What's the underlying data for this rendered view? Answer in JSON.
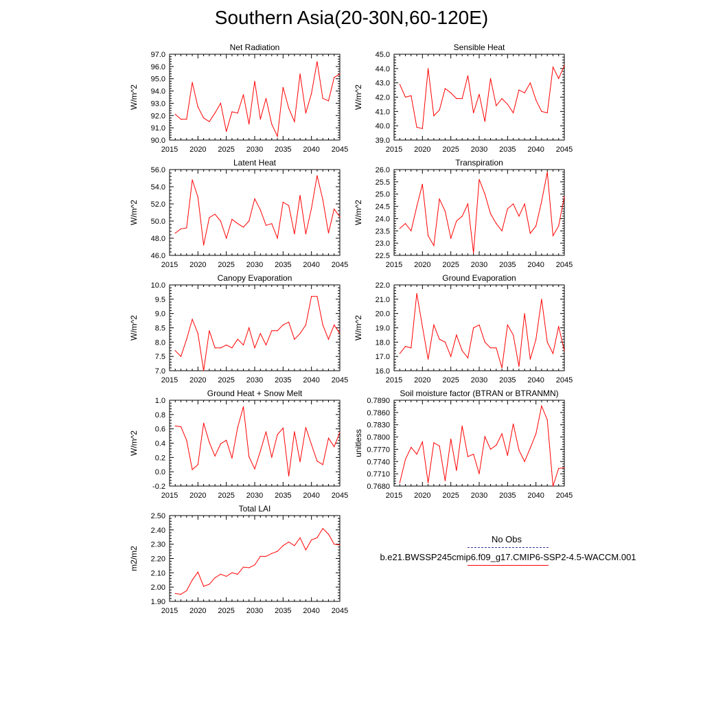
{
  "title": "Southern Asia(20-30N,60-120E)",
  "colors": {
    "series": "#ff0000",
    "obs": "#3030a0",
    "axis": "#000000"
  },
  "legend": {
    "obs_label": "No Obs",
    "model_label": "b.e21.BWSSP245cmip6.f09_g17.CMIP6-SSP2-4.5-WACCM.001"
  },
  "chart_data": [
    {
      "type": "line",
      "title": "Net Radiation",
      "ylabel": "W/m^2",
      "xlabel": "",
      "xlim": [
        2015,
        2045
      ],
      "ylim": [
        90.0,
        97.0
      ],
      "xticks": [
        2015,
        2020,
        2025,
        2030,
        2035,
        2040,
        2045
      ],
      "yticks": [
        "90.0",
        "91.0",
        "92.0",
        "93.0",
        "94.0",
        "95.0",
        "96.0",
        "97.0"
      ],
      "x": [
        2016,
        2017,
        2018,
        2019,
        2020,
        2021,
        2022,
        2023,
        2024,
        2025,
        2026,
        2027,
        2028,
        2029,
        2030,
        2031,
        2032,
        2033,
        2034,
        2035,
        2036,
        2037,
        2038,
        2039,
        2040,
        2041,
        2042,
        2043,
        2044,
        2045
      ],
      "values": [
        92.1,
        91.7,
        91.7,
        94.7,
        92.7,
        91.8,
        91.5,
        92.2,
        93.0,
        90.7,
        92.3,
        92.2,
        93.7,
        91.3,
        94.8,
        91.7,
        93.4,
        91.3,
        90.3,
        94.3,
        92.6,
        91.5,
        95.4,
        92.2,
        93.8,
        96.4,
        93.4,
        93.2,
        95.1,
        95.4
      ]
    },
    {
      "type": "line",
      "title": "Sensible Heat",
      "ylabel": "W/m^2",
      "xlabel": "",
      "xlim": [
        2015,
        2045
      ],
      "ylim": [
        39.0,
        45.0
      ],
      "xticks": [
        2015,
        2020,
        2025,
        2030,
        2035,
        2040,
        2045
      ],
      "yticks": [
        "39.0",
        "40.0",
        "41.0",
        "42.0",
        "43.0",
        "44.0",
        "45.0"
      ],
      "x": [
        2016,
        2017,
        2018,
        2019,
        2020,
        2021,
        2022,
        2023,
        2024,
        2025,
        2026,
        2027,
        2028,
        2029,
        2030,
        2031,
        2032,
        2033,
        2034,
        2035,
        2036,
        2037,
        2038,
        2039,
        2040,
        2041,
        2042,
        2043,
        2044,
        2045
      ],
      "values": [
        42.9,
        42.0,
        42.1,
        39.9,
        39.8,
        44.0,
        40.7,
        41.1,
        42.6,
        42.3,
        41.9,
        41.9,
        43.5,
        40.9,
        42.2,
        40.3,
        43.3,
        41.4,
        41.9,
        41.5,
        40.9,
        42.5,
        42.3,
        43.0,
        41.8,
        41.0,
        40.9,
        44.1,
        43.3,
        44.2
      ]
    },
    {
      "type": "line",
      "title": "Latent Heat",
      "ylabel": "W/m^2",
      "xlabel": "",
      "xlim": [
        2015,
        2045
      ],
      "ylim": [
        46.0,
        56.0
      ],
      "xticks": [
        2015,
        2020,
        2025,
        2030,
        2035,
        2040,
        2045
      ],
      "yticks": [
        "46.0",
        "48.0",
        "50.0",
        "52.0",
        "54.0",
        "56.0"
      ],
      "x": [
        2016,
        2017,
        2018,
        2019,
        2020,
        2021,
        2022,
        2023,
        2024,
        2025,
        2026,
        2027,
        2028,
        2029,
        2030,
        2031,
        2032,
        2033,
        2034,
        2035,
        2036,
        2037,
        2038,
        2039,
        2040,
        2041,
        2042,
        2043,
        2044,
        2045
      ],
      "values": [
        48.6,
        49.1,
        49.2,
        54.8,
        52.8,
        47.2,
        50.4,
        50.8,
        50.0,
        48.0,
        50.2,
        49.7,
        49.3,
        50.0,
        52.6,
        51.3,
        49.5,
        49.7,
        48.0,
        52.2,
        51.8,
        48.5,
        53.0,
        48.5,
        51.5,
        55.3,
        52.5,
        48.6,
        51.4,
        50.5
      ]
    },
    {
      "type": "line",
      "title": "Transpiration",
      "ylabel": "W/m^2",
      "xlabel": "",
      "xlim": [
        2015,
        2045
      ],
      "ylim": [
        22.5,
        26.0
      ],
      "xticks": [
        2015,
        2020,
        2025,
        2030,
        2035,
        2040,
        2045
      ],
      "yticks": [
        "22.5",
        "23.0",
        "23.5",
        "24.0",
        "24.5",
        "25.0",
        "25.5",
        "26.0"
      ],
      "x": [
        2016,
        2017,
        2018,
        2019,
        2020,
        2021,
        2022,
        2023,
        2024,
        2025,
        2026,
        2027,
        2028,
        2029,
        2030,
        2031,
        2032,
        2033,
        2034,
        2035,
        2036,
        2037,
        2038,
        2039,
        2040,
        2041,
        2042,
        2043,
        2044,
        2045
      ],
      "values": [
        23.6,
        23.8,
        23.5,
        24.5,
        25.4,
        23.3,
        22.9,
        24.8,
        24.3,
        23.2,
        23.9,
        24.1,
        24.6,
        22.6,
        25.6,
        25.0,
        24.2,
        23.8,
        23.5,
        24.4,
        24.6,
        24.1,
        24.6,
        23.4,
        23.7,
        24.7,
        25.9,
        23.3,
        23.7,
        24.9
      ]
    },
    {
      "type": "line",
      "title": "Canopy Evaporation",
      "ylabel": "W/m^2",
      "xlabel": "",
      "xlim": [
        2015,
        2045
      ],
      "ylim": [
        7.0,
        10.0
      ],
      "xticks": [
        2015,
        2020,
        2025,
        2030,
        2035,
        2040,
        2045
      ],
      "yticks": [
        "7.0",
        "7.5",
        "8.0",
        "8.5",
        "9.0",
        "9.5",
        "10.0"
      ],
      "x": [
        2016,
        2017,
        2018,
        2019,
        2020,
        2021,
        2022,
        2023,
        2024,
        2025,
        2026,
        2027,
        2028,
        2029,
        2030,
        2031,
        2032,
        2033,
        2034,
        2035,
        2036,
        2037,
        2038,
        2039,
        2040,
        2041,
        2042,
        2043,
        2044,
        2045
      ],
      "values": [
        7.7,
        7.5,
        8.1,
        8.8,
        8.3,
        7.0,
        8.4,
        7.8,
        7.8,
        7.9,
        7.8,
        8.1,
        7.9,
        8.5,
        7.8,
        8.3,
        7.9,
        8.4,
        8.4,
        8.6,
        8.7,
        8.1,
        8.3,
        8.6,
        9.6,
        9.6,
        8.6,
        8.1,
        8.6,
        8.3
      ]
    },
    {
      "type": "line",
      "title": "Ground Evaporation",
      "ylabel": "W/m^2",
      "xlabel": "",
      "xlim": [
        2015,
        2045
      ],
      "ylim": [
        16.0,
        22.0
      ],
      "xticks": [
        2015,
        2020,
        2025,
        2030,
        2035,
        2040,
        2045
      ],
      "yticks": [
        "16.0",
        "17.0",
        "18.0",
        "19.0",
        "20.0",
        "21.0",
        "22.0"
      ],
      "x": [
        2016,
        2017,
        2018,
        2019,
        2020,
        2021,
        2022,
        2023,
        2024,
        2025,
        2026,
        2027,
        2028,
        2029,
        2030,
        2031,
        2032,
        2033,
        2034,
        2035,
        2036,
        2037,
        2038,
        2039,
        2040,
        2041,
        2042,
        2043,
        2044,
        2045
      ],
      "values": [
        17.2,
        17.7,
        17.6,
        21.4,
        19.1,
        16.8,
        19.2,
        18.2,
        18.0,
        17.0,
        18.5,
        17.4,
        16.9,
        19.0,
        19.2,
        18.0,
        17.6,
        17.6,
        16.2,
        19.2,
        18.5,
        16.3,
        20.0,
        16.8,
        18.2,
        21.0,
        18.0,
        17.2,
        19.1,
        17.4
      ]
    },
    {
      "type": "line",
      "title": "Ground Heat + Snow Melt",
      "ylabel": "W/m^2",
      "xlabel": "",
      "xlim": [
        2015,
        2045
      ],
      "ylim": [
        -0.2,
        1.0
      ],
      "xticks": [
        2015,
        2020,
        2025,
        2030,
        2035,
        2040,
        2045
      ],
      "yticks": [
        "-0.2",
        "0.0",
        "0.2",
        "0.4",
        "0.6",
        "0.8",
        "1.0"
      ],
      "x": [
        2016,
        2017,
        2018,
        2019,
        2020,
        2021,
        2022,
        2023,
        2024,
        2025,
        2026,
        2027,
        2028,
        2029,
        2030,
        2031,
        2032,
        2033,
        2034,
        2035,
        2036,
        2037,
        2038,
        2039,
        2040,
        2041,
        2042,
        2043,
        2044,
        2045
      ],
      "values": [
        0.64,
        0.63,
        0.44,
        0.03,
        0.1,
        0.68,
        0.41,
        0.22,
        0.39,
        0.44,
        0.19,
        0.62,
        0.91,
        0.21,
        0.04,
        0.29,
        0.56,
        0.2,
        0.52,
        0.61,
        -0.06,
        0.56,
        0.14,
        0.62,
        0.38,
        0.15,
        0.1,
        0.47,
        0.35,
        0.55
      ]
    },
    {
      "type": "line",
      "title": "Soil moisture factor (BTRAN or BTRANMN)",
      "ylabel": "unitless",
      "xlabel": "",
      "xlim": [
        2015,
        2045
      ],
      "ylim": [
        0.768,
        0.789
      ],
      "xticks": [
        2015,
        2020,
        2025,
        2030,
        2035,
        2040,
        2045
      ],
      "yticks": [
        "0.7680",
        "0.7710",
        "0.7740",
        "0.7770",
        "0.7800",
        "0.7830",
        "0.7860",
        "0.7890"
      ],
      "x": [
        2016,
        2017,
        2018,
        2019,
        2020,
        2021,
        2022,
        2023,
        2024,
        2025,
        2026,
        2027,
        2028,
        2029,
        2030,
        2031,
        2032,
        2033,
        2034,
        2035,
        2036,
        2037,
        2038,
        2039,
        2040,
        2041,
        2042,
        2043,
        2044,
        2045
      ],
      "values": [
        0.7688,
        0.7745,
        0.7775,
        0.7758,
        0.7788,
        0.7688,
        0.7786,
        0.7778,
        0.7693,
        0.7795,
        0.7718,
        0.7827,
        0.7752,
        0.7758,
        0.771,
        0.7801,
        0.777,
        0.778,
        0.7808,
        0.7755,
        0.7832,
        0.7768,
        0.774,
        0.7773,
        0.7808,
        0.7876,
        0.7842,
        0.768,
        0.7723,
        0.7725
      ]
    },
    {
      "type": "line",
      "title": "Total LAI",
      "ylabel": "m2/m2",
      "xlabel": "",
      "xlim": [
        2015,
        2045
      ],
      "ylim": [
        1.9,
        2.5
      ],
      "xticks": [
        2015,
        2020,
        2025,
        2030,
        2035,
        2040,
        2045
      ],
      "yticks": [
        "1.90",
        "2.00",
        "2.10",
        "2.20",
        "2.30",
        "2.40",
        "2.50"
      ],
      "x": [
        2016,
        2017,
        2018,
        2019,
        2020,
        2021,
        2022,
        2023,
        2024,
        2025,
        2026,
        2027,
        2028,
        2029,
        2030,
        2031,
        2032,
        2033,
        2034,
        2035,
        2036,
        2037,
        2038,
        2039,
        2040,
        2041,
        2042,
        2043,
        2044,
        2045
      ],
      "values": [
        1.955,
        1.95,
        1.975,
        2.05,
        2.105,
        2.005,
        2.02,
        2.065,
        2.09,
        2.075,
        2.1,
        2.09,
        2.14,
        2.135,
        2.155,
        2.215,
        2.215,
        2.235,
        2.25,
        2.29,
        2.315,
        2.29,
        2.345,
        2.26,
        2.33,
        2.345,
        2.41,
        2.37,
        2.3,
        2.295
      ]
    }
  ]
}
